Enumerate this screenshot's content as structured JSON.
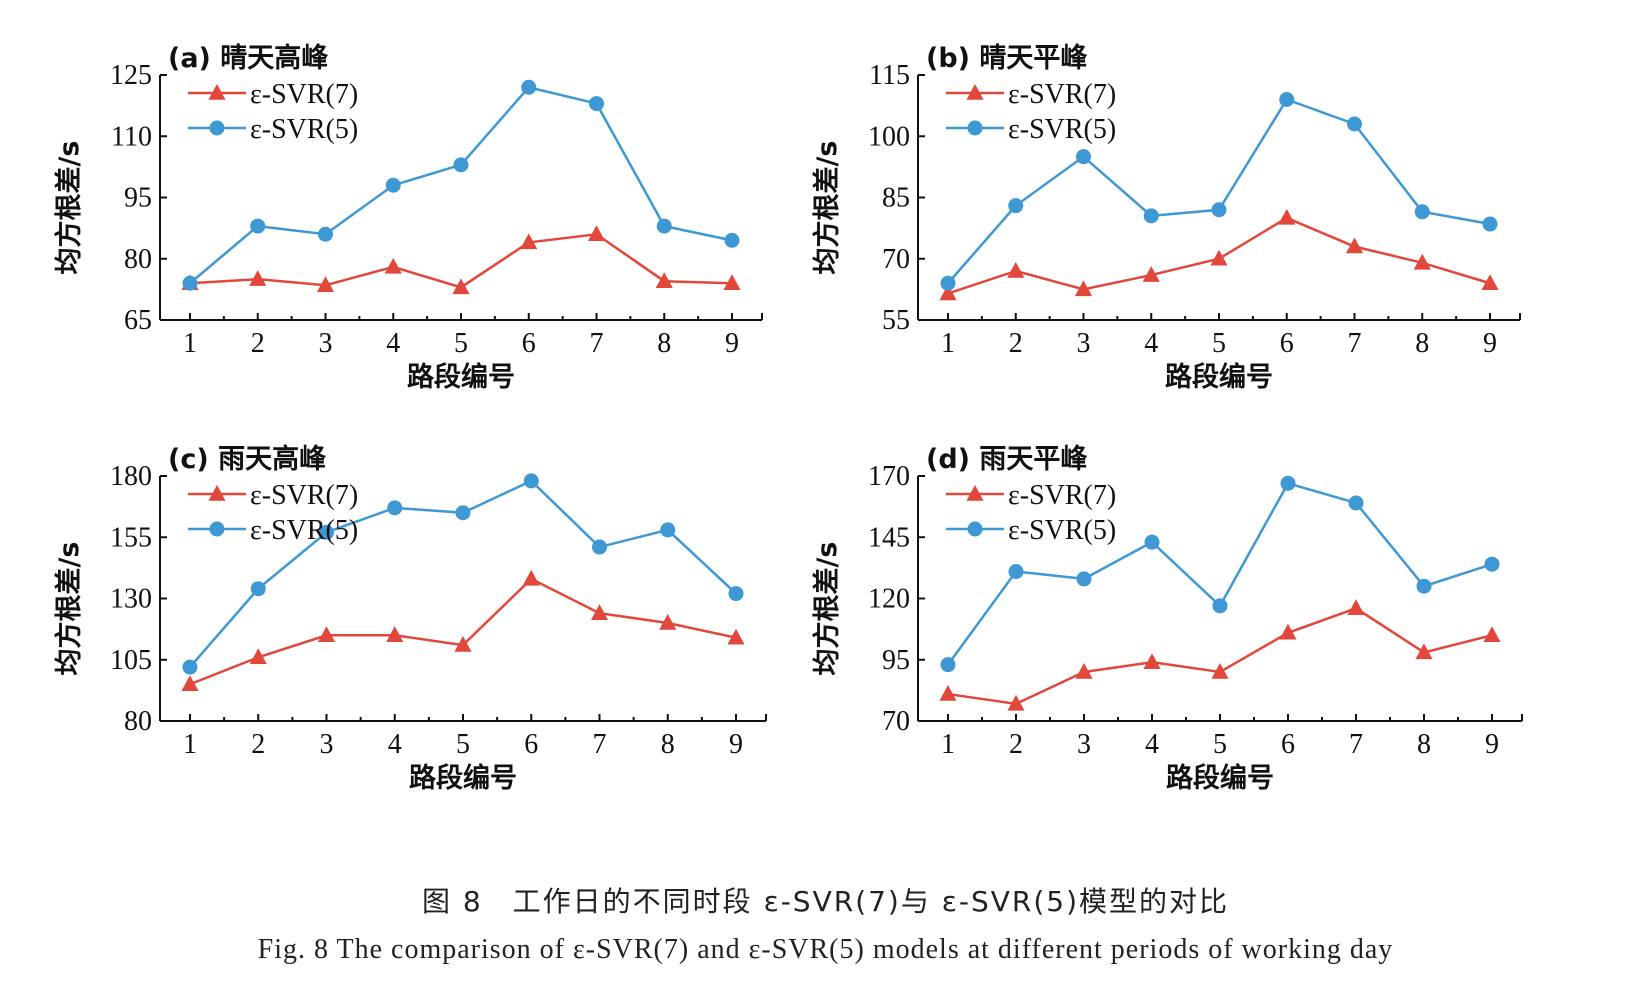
{
  "figure": {
    "caption_cn": "图 8　工作日的不同时段 ε-SVR(7)与 ε-SVR(5)模型的对比",
    "caption_en": "Fig. 8  The comparison of ε-SVR(7) and ε-SVR(5) models at different periods of working day"
  },
  "colors": {
    "svr7": "#e2473b",
    "svr5": "#3d98d3",
    "axis": "#111111"
  },
  "chart_data": [
    {
      "type": "line",
      "title": "(a) 晴天高峰",
      "xlabel": "路段编号",
      "ylabel": "均方根差/s",
      "categories": [
        "1",
        "2",
        "3",
        "4",
        "5",
        "6",
        "7",
        "8",
        "9"
      ],
      "yticks": [
        65,
        80,
        95,
        110,
        125
      ],
      "ylim": [
        65,
        125
      ],
      "legend_position": "top-left",
      "grid": false,
      "series": [
        {
          "name": "ε-SVR(7)",
          "marker": "triangle",
          "values": [
            74,
            75,
            73.5,
            78,
            73,
            84,
            86,
            74.5,
            74
          ]
        },
        {
          "name": "ε-SVR(5)",
          "marker": "circle",
          "values": [
            74,
            88,
            86,
            98,
            103,
            122,
            118,
            88,
            84.5
          ]
        }
      ]
    },
    {
      "type": "line",
      "title": "(b) 晴天平峰",
      "xlabel": "路段编号",
      "ylabel": "均方根差/s",
      "categories": [
        "1",
        "2",
        "3",
        "4",
        "5",
        "6",
        "7",
        "8",
        "9"
      ],
      "yticks": [
        55,
        70,
        85,
        100,
        115
      ],
      "ylim": [
        55,
        115
      ],
      "legend_position": "top-left",
      "grid": false,
      "series": [
        {
          "name": "ε-SVR(7)",
          "marker": "triangle",
          "values": [
            61.5,
            67,
            62.5,
            66,
            70,
            80,
            73,
            69,
            64
          ]
        },
        {
          "name": "ε-SVR(5)",
          "marker": "circle",
          "values": [
            64,
            83,
            95,
            80.5,
            82,
            109,
            103,
            81.5,
            78.5
          ]
        }
      ]
    },
    {
      "type": "line",
      "title": "(c) 雨天高峰",
      "xlabel": "路段编号",
      "ylabel": "均方根差/s",
      "categories": [
        "1",
        "2",
        "3",
        "4",
        "5",
        "6",
        "7",
        "8",
        "9"
      ],
      "yticks": [
        80,
        105,
        130,
        155,
        180
      ],
      "ylim": [
        80,
        180
      ],
      "legend_position": "top-left",
      "grid": false,
      "series": [
        {
          "name": "ε-SVR(7)",
          "marker": "triangle",
          "values": [
            95,
            106,
            115,
            115,
            111,
            138,
            124,
            120,
            114
          ]
        },
        {
          "name": "ε-SVR(5)",
          "marker": "circle",
          "values": [
            102,
            134,
            157,
            167,
            165,
            178,
            151,
            158,
            132
          ]
        }
      ]
    },
    {
      "type": "line",
      "title": "(d) 雨天平峰",
      "xlabel": "路段编号",
      "ylabel": "均方根差/s",
      "categories": [
        "1",
        "2",
        "3",
        "4",
        "5",
        "6",
        "7",
        "8",
        "9"
      ],
      "yticks": [
        70,
        95,
        120,
        145,
        170
      ],
      "ylim": [
        70,
        170
      ],
      "legend_position": "top-left",
      "grid": false,
      "series": [
        {
          "name": "ε-SVR(7)",
          "marker": "triangle",
          "values": [
            81,
            77,
            90,
            94,
            90,
            106,
            116,
            98,
            105
          ]
        },
        {
          "name": "ε-SVR(5)",
          "marker": "circle",
          "values": [
            93,
            131,
            128,
            143,
            117,
            167,
            159,
            125,
            134
          ]
        }
      ]
    }
  ]
}
